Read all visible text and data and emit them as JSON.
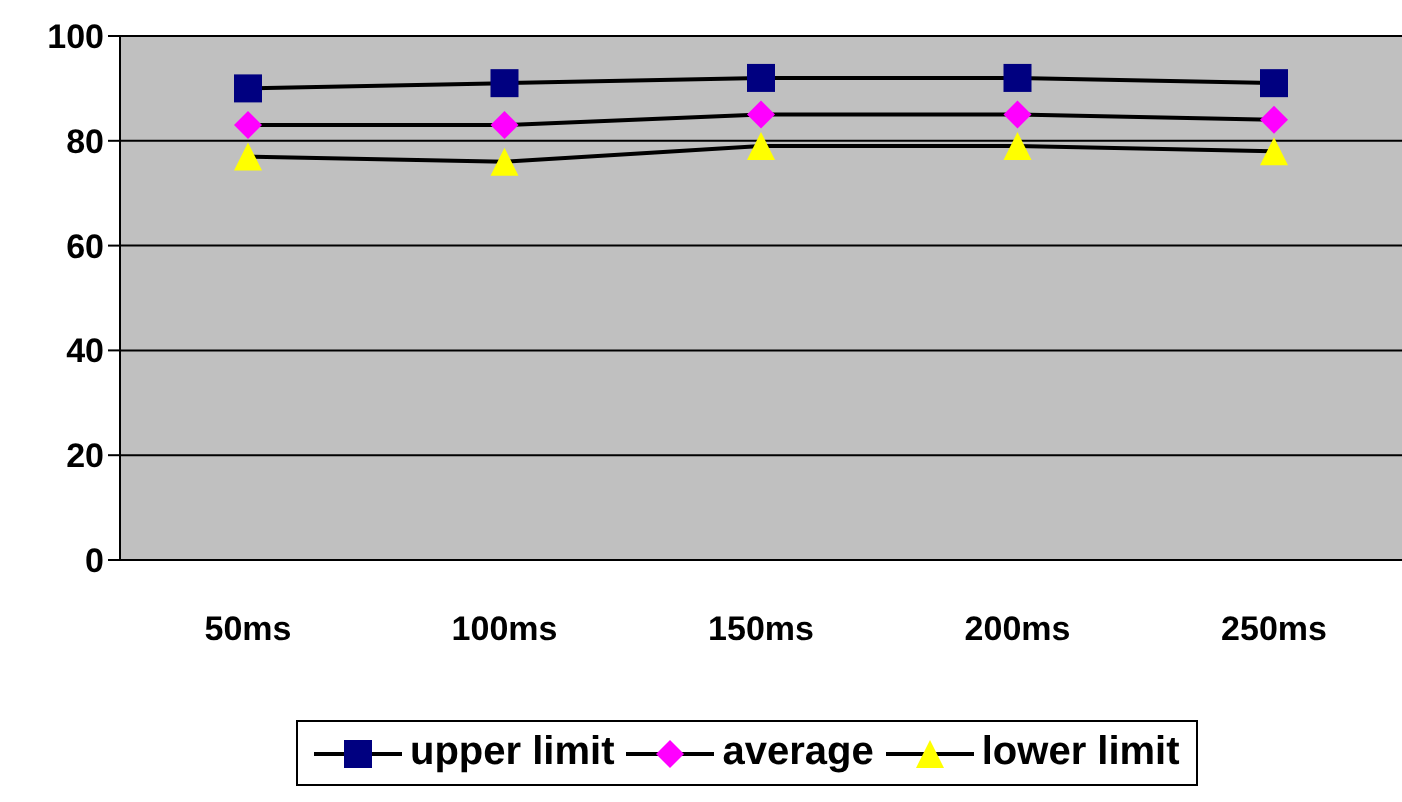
{
  "chart_data": {
    "type": "line",
    "categories": [
      "50ms",
      "100ms",
      "150ms",
      "200ms",
      "250ms"
    ],
    "series": [
      {
        "name": "upper limit",
        "color": "#000080",
        "marker": "square",
        "values": [
          90,
          91,
          92,
          92,
          91
        ]
      },
      {
        "name": "average",
        "color": "#ff00ff",
        "marker": "diamond",
        "values": [
          83,
          83,
          85,
          85,
          84
        ]
      },
      {
        "name": "lower limit",
        "color": "#ffff00",
        "marker": "triangle",
        "values": [
          77,
          76,
          79,
          79,
          78
        ]
      }
    ],
    "ylim": [
      0,
      100
    ],
    "yticks": [
      0,
      20,
      40,
      60,
      80,
      100
    ],
    "grid": "y",
    "legend": "bottom",
    "line_style": "solid"
  }
}
